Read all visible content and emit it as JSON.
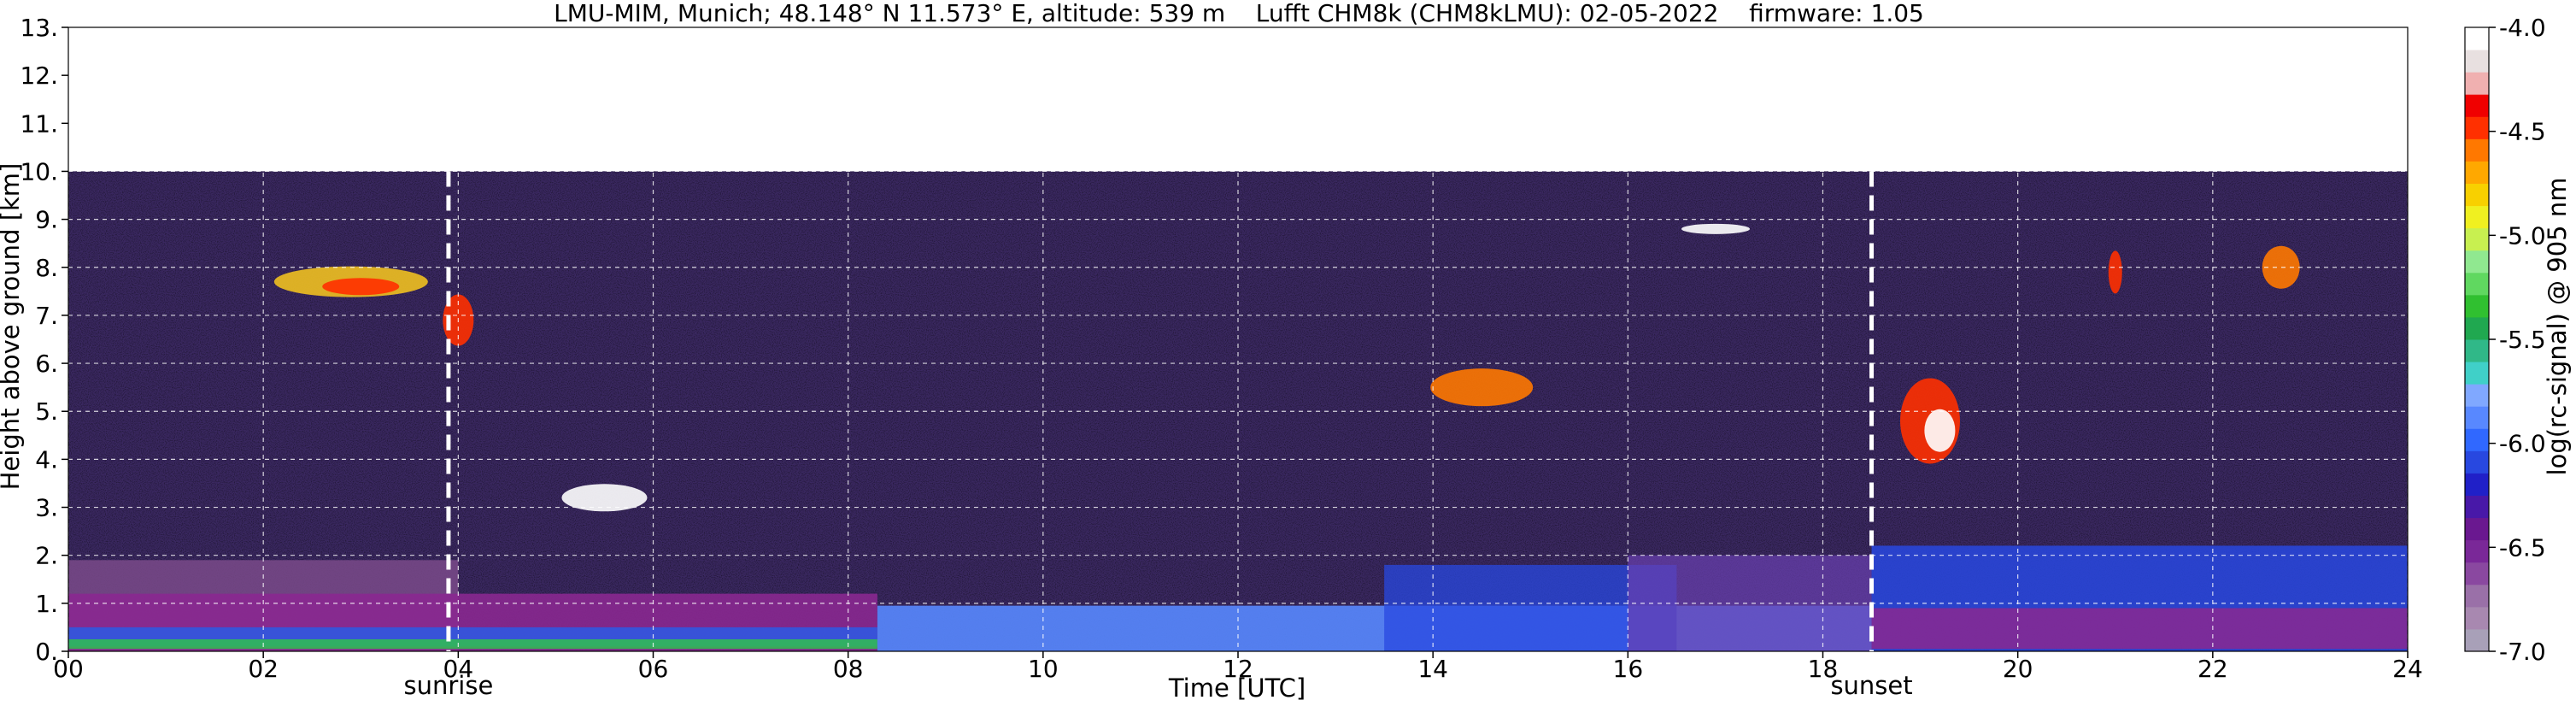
{
  "chart_data": {
    "type": "heatmap",
    "title": "LMU-MIM, Munich; 48.148° N 11.573° E, altitude: 539 m    Lufft CHM8k (CHM8kLMU): 02-05-2022    firmware: 1.05",
    "xlabel": "Time [UTC]",
    "ylabel": "Height above ground [km]",
    "colorbar_label": "log(rc-signal) @ 905 nm",
    "xlim": [
      0,
      24
    ],
    "ylim": [
      0,
      13
    ],
    "x_ticks": [
      "00",
      "02",
      "04",
      "06",
      "08",
      "10",
      "12",
      "14",
      "16",
      "18",
      "20",
      "22",
      "24"
    ],
    "y_ticks": [
      "0.",
      "1.",
      "2.",
      "3.",
      "4.",
      "5.",
      "6.",
      "7.",
      "8.",
      "9.",
      "10.",
      "11.",
      "12.",
      "13."
    ],
    "colorbar_range": [
      -7.0,
      -4.0
    ],
    "colorbar_ticks": [
      "-4.0",
      "-4.5",
      "-5.0",
      "-5.5",
      "-6.0",
      "-6.5",
      "-7.0"
    ],
    "colorbar_colors": [
      "#a8a0b8",
      "#a888b0",
      "#9a70a8",
      "#8a48a0",
      "#7a2898",
      "#6a1890",
      "#4818a8",
      "#2020c8",
      "#2848e0",
      "#3068ff",
      "#5888ff",
      "#80a8ff",
      "#40d0c8",
      "#30b888",
      "#20a850",
      "#30c030",
      "#60d860",
      "#90e890",
      "#c8f050",
      "#f0f020",
      "#f8d000",
      "#ffa800",
      "#ff7800",
      "#ff3000",
      "#f00000",
      "#f0b0b0",
      "#e8e0e0",
      "#ffffff"
    ],
    "measurement_ceiling_km": 10.0,
    "grid": true,
    "markers": [
      {
        "x": 3.9,
        "label": "sunrise"
      },
      {
        "x": 18.5,
        "label": "sunset"
      }
    ],
    "grid_style": "white dashed"
  }
}
